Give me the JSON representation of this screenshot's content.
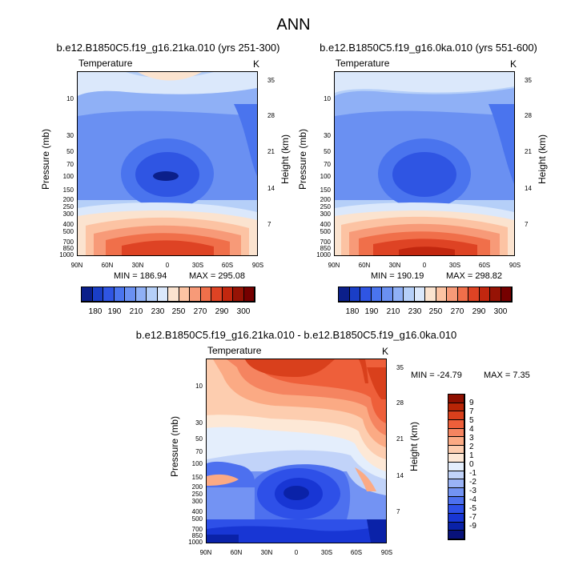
{
  "figure": {
    "main_title": "ANN",
    "field": "Temperature",
    "units": "K",
    "y_left_label": "Pressure (mb)",
    "y_right_label": "Height (km)"
  },
  "axes": {
    "x_ticks": [
      "90N",
      "60N",
      "30N",
      "0",
      "30S",
      "60S",
      "90S"
    ],
    "pressure_ticks": [
      "10",
      "30",
      "50",
      "70",
      "100",
      "150",
      "200",
      "250",
      "300",
      "400",
      "500",
      "700",
      "850",
      "1000"
    ],
    "height_ticks": [
      "35",
      "28",
      "21",
      "14",
      "7"
    ]
  },
  "panels": [
    {
      "title": "b.e12.B1850C5.f19_g16.21ka.010 (yrs 251-300)",
      "min_label": "MIN = 186.94",
      "max_label": "MAX = 295.08"
    },
    {
      "title": "b.e12.B1850C5.f19_g16.0ka.010 (yrs 551-600)",
      "min_label": "MIN = 190.19",
      "max_label": "MAX = 298.82"
    },
    {
      "title": "b.e12.B1850C5.f19_g16.21ka.010 - b.e12.B1850C5.f19_g16.0ka.010",
      "min_label": "MIN = -24.79",
      "max_label": "MAX =   7.35"
    }
  ],
  "colorbar_abs": {
    "colors": [
      "#0b1f8a",
      "#1a3ec6",
      "#2f55e3",
      "#4a74ee",
      "#6a90f2",
      "#8fb0f6",
      "#b5cff8",
      "#dbe8fb",
      "#fbe3cf",
      "#fcc3a3",
      "#f79a78",
      "#f06f4a",
      "#de4324",
      "#c2270f",
      "#961305",
      "#750000"
    ],
    "labels": [
      "180",
      "190",
      "210",
      "230",
      "250",
      "270",
      "290",
      "300"
    ]
  },
  "colorbar_diff": {
    "colors": [
      "#08127a",
      "#0a22a8",
      "#1836d4",
      "#2e50e8",
      "#4d70ef",
      "#7393f3",
      "#9ab3f6",
      "#c1d3f9",
      "#e4eefc",
      "#fde8d6",
      "#fdcdaf",
      "#fbaa84",
      "#f58460",
      "#ee5f3a",
      "#d9401c",
      "#b82506",
      "#8e0f00"
    ],
    "labels": [
      "9",
      "7",
      "5",
      "4",
      "3",
      "2",
      "1",
      "0",
      "-1",
      "-2",
      "-3",
      "-4",
      "-5",
      "-7",
      "-9"
    ]
  },
  "chart_data": [
    {
      "type": "heatmap",
      "title": "b.e12.B1850C5.f19_g16.21ka.010 (yrs 251-300)",
      "subtitle": "Temperature",
      "units": "K",
      "xlabel": "",
      "ylabel": "Pressure (mb)",
      "ylabel_right": "Height (km)",
      "x_ticks": [
        "90N",
        "60N",
        "30N",
        "0",
        "30S",
        "60S",
        "90S"
      ],
      "y_ticks_pressure": [
        10,
        30,
        50,
        70,
        100,
        150,
        200,
        250,
        300,
        400,
        500,
        700,
        850,
        1000
      ],
      "y_ticks_height": [
        35,
        28,
        21,
        14,
        7
      ],
      "y_scale": "log",
      "min": 186.94,
      "max": 295.08,
      "colorbar_levels": [
        180,
        190,
        210,
        230,
        250,
        270,
        290,
        300
      ]
    },
    {
      "type": "heatmap",
      "title": "b.e12.B1850C5.f19_g16.0ka.010 (yrs 551-600)",
      "subtitle": "Temperature",
      "units": "K",
      "xlabel": "",
      "ylabel": "Pressure (mb)",
      "ylabel_right": "Height (km)",
      "x_ticks": [
        "90N",
        "60N",
        "30N",
        "0",
        "30S",
        "60S",
        "90S"
      ],
      "y_ticks_pressure": [
        10,
        30,
        50,
        70,
        100,
        150,
        200,
        250,
        300,
        400,
        500,
        700,
        850,
        1000
      ],
      "y_ticks_height": [
        35,
        28,
        21,
        14,
        7
      ],
      "y_scale": "log",
      "min": 190.19,
      "max": 298.82,
      "colorbar_levels": [
        180,
        190,
        210,
        230,
        250,
        270,
        290,
        300
      ]
    },
    {
      "type": "heatmap",
      "title": "b.e12.B1850C5.f19_g16.21ka.010 - b.e12.B1850C5.f19_g16.0ka.010",
      "subtitle": "Temperature",
      "units": "K",
      "xlabel": "",
      "ylabel": "Pressure (mb)",
      "ylabel_right": "Height (km)",
      "x_ticks": [
        "90N",
        "60N",
        "30N",
        "0",
        "30S",
        "60S",
        "90S"
      ],
      "y_ticks_pressure": [
        10,
        30,
        50,
        70,
        100,
        150,
        200,
        250,
        300,
        400,
        500,
        700,
        850,
        1000
      ],
      "y_ticks_height": [
        35,
        28,
        21,
        14,
        7
      ],
      "y_scale": "log",
      "min": -24.79,
      "max": 7.35,
      "colorbar_levels": [
        9,
        7,
        5,
        4,
        3,
        2,
        1,
        0,
        -1,
        -2,
        -3,
        -4,
        -5,
        -7,
        -9
      ]
    }
  ]
}
